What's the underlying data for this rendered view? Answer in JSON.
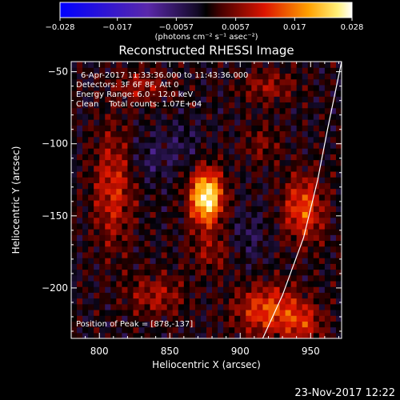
{
  "chart_data": {
    "type": "heatmap",
    "title": "Reconstructed RHESSI Image",
    "xlabel": "Heliocentric X (arcsec)",
    "ylabel": "Heliocentric Y (arcsec)",
    "xlim": [
      780,
      972
    ],
    "ylim": [
      -235,
      -43
    ],
    "x_ticks": [
      800,
      850,
      900,
      950
    ],
    "x_tick_labels": [
      "800",
      "850",
      "900",
      "950"
    ],
    "y_ticks": [
      -50,
      -100,
      -150,
      -200
    ],
    "y_tick_labels": [
      "−50",
      "−100",
      "−150",
      "−200"
    ],
    "colorbar": {
      "range": [
        -0.028,
        0.028
      ],
      "ticks": [
        -0.028,
        -0.017,
        -0.0057,
        0.0057,
        0.017,
        0.028
      ],
      "tick_labels": [
        "−0.028",
        "−0.017",
        "−0.0057",
        "0.0057",
        "0.017",
        "0.028"
      ],
      "label": "(photons cm⁻² s⁻¹ asec⁻²)",
      "colors": [
        "#0000ff",
        "#000000",
        "#ff0000",
        "#ffa000",
        "#ffff80",
        "#ffffff"
      ]
    },
    "annotations": [
      "6-Apr-2017 11:33:36.000 to 11:43:36.000",
      "Detectors: 3F 6F 8F, Att 0",
      "Energy Range: 6.0 - 12.0 keV",
      "Clean    Total counts: 1.07E+04"
    ],
    "peak_label": "Position of Peak = [878,-137]",
    "peak": [
      878,
      -137
    ],
    "limb_points": [
      [
        972,
        -43
      ],
      [
        962,
        -90
      ],
      [
        955,
        -125
      ],
      [
        945,
        -165
      ],
      [
        930,
        -205
      ],
      [
        916,
        -235
      ]
    ],
    "sources": [
      {
        "x": 876,
        "y": -137,
        "amp": 0.028,
        "sx": 8,
        "sy": 13
      },
      {
        "x": 810,
        "y": -130,
        "amp": 0.011,
        "sx": 10,
        "sy": 28
      },
      {
        "x": 945,
        "y": -145,
        "amp": 0.014,
        "sx": 10,
        "sy": 16
      },
      {
        "x": 920,
        "y": -215,
        "amp": 0.014,
        "sx": 16,
        "sy": 12
      },
      {
        "x": 840,
        "y": -205,
        "amp": 0.008,
        "sx": 14,
        "sy": 10
      },
      {
        "x": 945,
        "y": -225,
        "amp": 0.009,
        "sx": 10,
        "sy": 10
      },
      {
        "x": 830,
        "y": -60,
        "amp": 0.007,
        "sx": 14,
        "sy": 8
      },
      {
        "x": 920,
        "y": -60,
        "amp": 0.007,
        "sx": 14,
        "sy": 8
      },
      {
        "x": 880,
        "y": -175,
        "amp": 0.006,
        "sx": 12,
        "sy": 10
      },
      {
        "x": 915,
        "y": -100,
        "amp": 0.005,
        "sx": 10,
        "sy": 10
      },
      {
        "x": 835,
        "y": -110,
        "amp": -0.004,
        "sx": 12,
        "sy": 12
      },
      {
        "x": 860,
        "y": -100,
        "amp": -0.003,
        "sx": 10,
        "sy": 12
      },
      {
        "x": 905,
        "y": -165,
        "amp": -0.004,
        "sx": 10,
        "sy": 14
      }
    ]
  },
  "footer": {
    "timestamp": "23-Nov-2017 12:22"
  }
}
